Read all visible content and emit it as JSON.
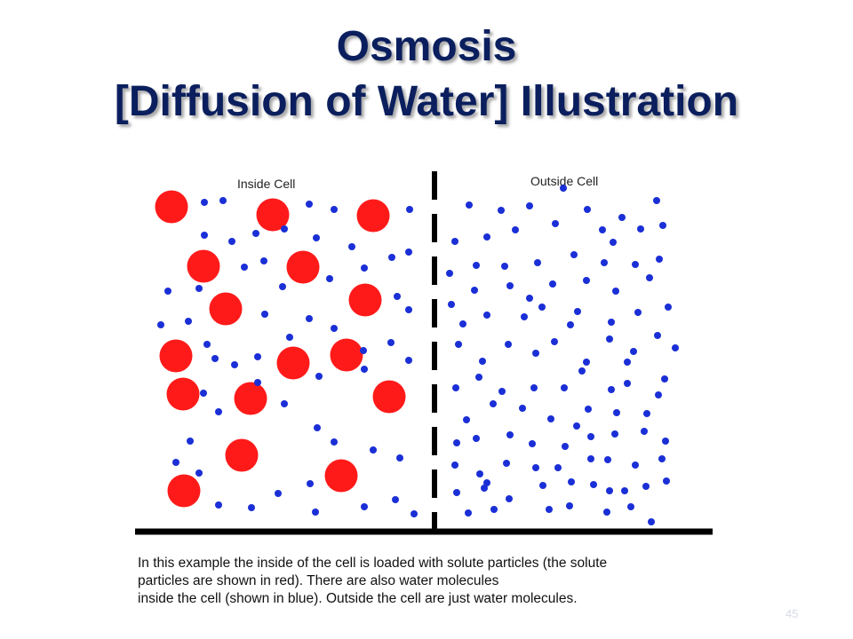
{
  "title": {
    "line1": "Osmosis",
    "line2": "[Diffusion of Water] Illustration"
  },
  "diagram": {
    "inside_label": "Inside Cell",
    "outside_label": "Outside Cell",
    "colors": {
      "solute": "#ff1a1a",
      "water": "#1a2fd6",
      "membrane": "#000000"
    }
  },
  "caption": {
    "line1": "In this example the inside of the cell is loaded with solute particles (the solute",
    "line2": "particles are shown in red). There are also water molecules",
    "line3": "inside the cell (shown in blue). Outside the cell are just water molecules."
  },
  "slide_number": "45"
}
